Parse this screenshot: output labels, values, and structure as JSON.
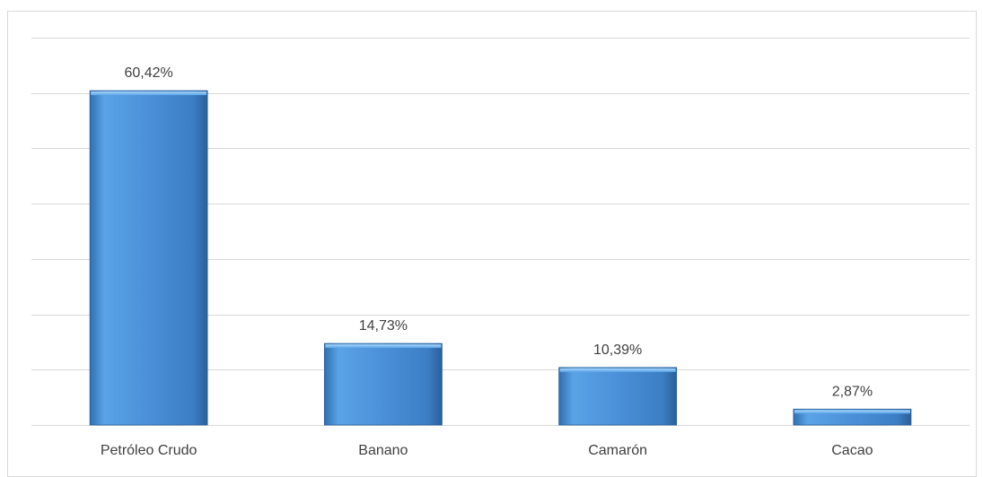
{
  "chart_data": {
    "type": "bar",
    "categories": [
      "Petróleo Crudo",
      "Banano",
      "Camarón",
      "Cacao"
    ],
    "values": [
      60.42,
      14.73,
      10.39,
      2.87
    ],
    "data_labels": [
      "60,42%",
      "14,73%",
      "10,39%",
      "2,87%"
    ],
    "ylim": [
      0,
      70
    ],
    "gridline_step": 10,
    "grid": true,
    "legend": "none",
    "bar_color": "#4a90d9",
    "bar_color_light": "#7fbcf0",
    "bar_color_dark": "#2f6fb0"
  }
}
